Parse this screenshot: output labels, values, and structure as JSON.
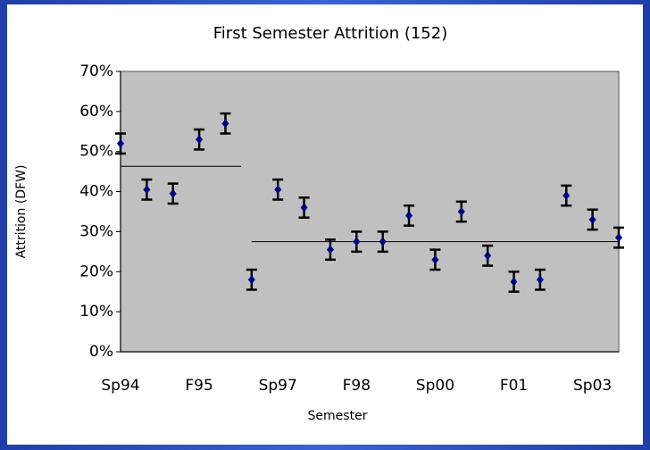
{
  "chart_data": {
    "type": "errorbar",
    "title": "First Semester Attrition (152)",
    "x_label": "Semester",
    "y_label": "Attrition (DFW)",
    "categories": [
      "Sp94",
      null,
      null,
      "F95",
      null,
      null,
      "Sp97",
      null,
      null,
      "F98",
      null,
      null,
      "Sp00",
      null,
      null,
      "F01",
      null,
      null,
      "Sp03",
      null
    ],
    "values": [
      52,
      40.5,
      39.5,
      53,
      57,
      18,
      40.5,
      36,
      25.5,
      27.5,
      27.5,
      34,
      23,
      35,
      24,
      17.5,
      18,
      39,
      33,
      28.5
    ],
    "errors": [
      2.5,
      2.5,
      2.5,
      2.5,
      2.5,
      2.5,
      2.5,
      2.5,
      2.5,
      2.5,
      2.5,
      2.5,
      2.5,
      2.5,
      2.5,
      2.5,
      2.5,
      2.5,
      2.5,
      2.5
    ],
    "color": "#000080",
    "error_color": "#000000",
    "reference_lines": [
      {
        "value": 46.3,
        "start": 0,
        "end": 4.6
      },
      {
        "value": 27.5,
        "start": 5,
        "end": 19
      }
    ],
    "ylim": [
      0,
      70
    ],
    "yticks": [
      {
        "value": 0,
        "label": "0%"
      },
      {
        "value": 10,
        "label": "10%"
      },
      {
        "value": 20,
        "label": "20%"
      },
      {
        "value": 30,
        "label": "30%"
      },
      {
        "value": 40,
        "label": "40%"
      },
      {
        "value": 50,
        "label": "50%"
      },
      {
        "value": 60,
        "label": "60%"
      },
      {
        "value": 70,
        "label": "70%"
      }
    ]
  }
}
